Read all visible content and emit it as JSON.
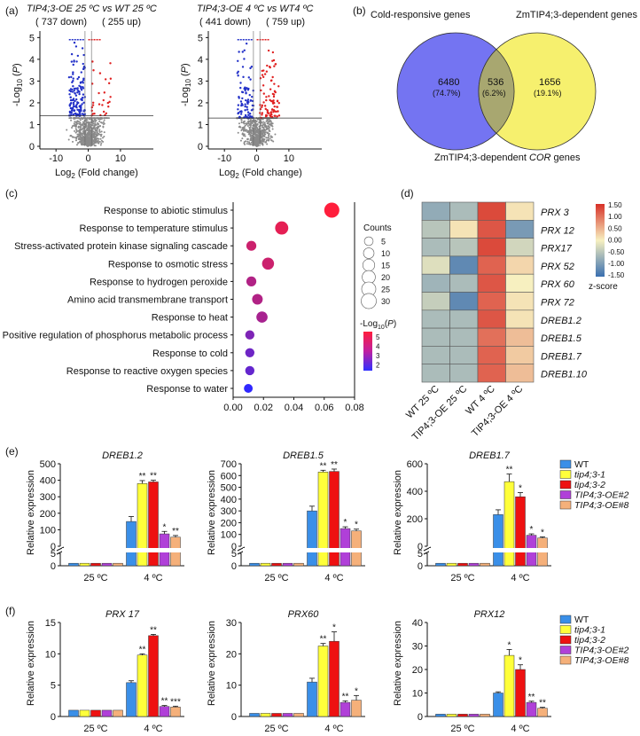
{
  "colors": {
    "blue": "#2230c8",
    "red": "#e02020",
    "grey": "#8a8a8a",
    "venn_left": "#7070f0",
    "venn_right": "#f5f06a",
    "venn_mid": "#a8a86a",
    "wt": "#3a8fe8",
    "tip1": "#ffff3a",
    "tip2": "#ee1111",
    "oe2": "#b040d8",
    "oe8": "#f5b07a"
  },
  "panel_labels": {
    "a": "(a)",
    "b": "(b)",
    "c": "(c)",
    "d": "(d)",
    "e": "(e)",
    "f": "(f)"
  },
  "volcano": [
    {
      "title": "TIP4;3-OE 25 ºC vs WT 25 ºC",
      "down": "( 737 down)",
      "up": "( 255 up)",
      "xlabel": "Log2 (Fold change)",
      "ylabel": "-Log10 (P)",
      "yticks": [
        "0",
        "1",
        "2",
        "3",
        "4",
        "5"
      ],
      "xticks": [
        "-10",
        "0",
        "10"
      ],
      "threshold": 1.4
    },
    {
      "title": "TIP4;3-OE 4 ºC vs WT4 ºC",
      "down": "( 441 down)",
      "up": "( 759 up)",
      "xlabel": "Log2 (Fold change)",
      "ylabel": "-Log10 (P)",
      "yticks": [
        "0",
        "1",
        "2",
        "3",
        "4",
        "5"
      ],
      "xticks": [
        "-10",
        "0",
        "10"
      ],
      "threshold": 1.3
    }
  ],
  "venn": {
    "left_label": "Cold-responsive genes",
    "right_label": "ZmTIP4;3-dependent genes",
    "bottom_label": "ZmTIP4;3-dependent COR genes",
    "left_n": "6480",
    "left_pct": "(74.7%)",
    "mid_n": "536",
    "mid_pct": "(6.2%)",
    "right_n": "1656",
    "right_pct": "(19.1%)"
  },
  "chart_data": [
    {
      "type": "scatter",
      "panel": "c",
      "title": "GO enrichment",
      "categories": [
        "Response to abiotic stimulus",
        "Response to temperature stimulus",
        "Stress-activated protein kinase signaling cascade",
        "Response to osmotic stress",
        "Response to hydrogen peroxide",
        "Amino acid transmembrane transport",
        "Response to heat",
        "Positive regulation of phosphorus metabolic process",
        "Response to cold",
        "Response to reactive oxygen species",
        "Response to water"
      ],
      "x": [
        0.065,
        0.032,
        0.012,
        0.023,
        0.012,
        0.016,
        0.019,
        0.011,
        0.011,
        0.011,
        0.01
      ],
      "counts": [
        30,
        20,
        8,
        15,
        8,
        10,
        12,
        6,
        6,
        6,
        5
      ],
      "neglogp": [
        5.5,
        5.0,
        4.5,
        4.5,
        4.0,
        4.0,
        3.8,
        3.0,
        2.7,
        2.5,
        1.5
      ],
      "xticks": [
        "0.00",
        "0.02",
        "0.04",
        "0.06",
        "0.08"
      ],
      "xlim": [
        0,
        0.08
      ],
      "legend": {
        "counts_title": "Counts",
        "counts": [
          "5",
          "10",
          "15",
          "20",
          "25",
          "30"
        ],
        "color_title": "-Log10(P)",
        "color_ticks": [
          "5",
          "4",
          "3",
          "2"
        ]
      }
    },
    {
      "type": "heatmap",
      "panel": "d",
      "rows": [
        "PRX 3",
        "PRX 12",
        "PRX17",
        "PRX 52",
        "PRX 60",
        "PRX 72",
        "DREB1.2",
        "DREB1.5",
        "DREB1.7",
        "DREB1.10"
      ],
      "columns": [
        "WT 25 ºC",
        "TIP4;3-OE 25 ºC",
        "WT 4 ºC",
        "TIP4;3-OE 4 ºC"
      ],
      "values": [
        [
          -0.8,
          -0.6,
          1.3,
          0.1
        ],
        [
          -0.5,
          0.1,
          1.2,
          -1.0
        ],
        [
          -0.6,
          -0.5,
          1.3,
          -0.3
        ],
        [
          -0.2,
          -1.2,
          1.1,
          0.2
        ],
        [
          -0.7,
          -0.6,
          1.2,
          0.0
        ],
        [
          -0.4,
          -1.2,
          1.1,
          0.1
        ],
        [
          -0.6,
          -0.6,
          1.2,
          0.1
        ],
        [
          -0.6,
          -0.6,
          1.0,
          0.4
        ],
        [
          -0.6,
          -0.6,
          1.1,
          0.3
        ],
        [
          -0.6,
          -0.6,
          1.1,
          0.4
        ]
      ],
      "scale": {
        "ticks": [
          "1.50",
          "1.00",
          "0.50",
          "0.00",
          "-0.50",
          "-1.00",
          "-1.50"
        ],
        "label": "z-score"
      }
    },
    {
      "type": "bar",
      "panel": "e",
      "title": "DREB1.2",
      "ylabel": "Relative expression",
      "categories": [
        "25 ºC",
        "4 ºC"
      ],
      "series": [
        {
          "name": "WT",
          "values": [
            1,
            150
          ],
          "err": [
            0.15,
            30
          ]
        },
        {
          "name": "tip4;3-1",
          "values": [
            1,
            380
          ],
          "err": [
            0.15,
            18
          ]
        },
        {
          "name": "tip4;3-2",
          "values": [
            1,
            390
          ],
          "err": [
            0.15,
            10
          ]
        },
        {
          "name": "TIP4;3-OE#2",
          "values": [
            1,
            75
          ],
          "err": [
            0.15,
            15
          ]
        },
        {
          "name": "TIP4;3-OE#8",
          "values": [
            1,
            55
          ],
          "err": [
            0.15,
            10
          ]
        }
      ],
      "stars": [
        "",
        "**",
        "**",
        "*",
        "**"
      ],
      "upper": {
        "lim": [
          0,
          500
        ],
        "ticks": [
          "0",
          "100",
          "200",
          "300",
          "400",
          "500"
        ]
      },
      "lower": {
        "lim": [
          0,
          5
        ],
        "ticks": [
          "0",
          "5"
        ]
      }
    },
    {
      "type": "bar",
      "panel": "e",
      "title": "DREB1.5",
      "ylabel": "Relative expression",
      "categories": [
        "25 ºC",
        "4 ºC"
      ],
      "series": [
        {
          "name": "WT",
          "values": [
            1,
            300
          ],
          "err": [
            0.15,
            40
          ]
        },
        {
          "name": "tip4;3-1",
          "values": [
            1,
            630
          ],
          "err": [
            0.15,
            15
          ]
        },
        {
          "name": "tip4;3-2",
          "values": [
            1,
            635
          ],
          "err": [
            0.15,
            20
          ]
        },
        {
          "name": "TIP4;3-OE#2",
          "values": [
            1,
            150
          ],
          "err": [
            0.15,
            15
          ]
        },
        {
          "name": "TIP4;3-OE#8",
          "values": [
            1,
            130
          ],
          "err": [
            0.15,
            15
          ]
        }
      ],
      "stars": [
        "",
        "**",
        "**",
        "*",
        "*"
      ],
      "upper": {
        "lim": [
          0,
          700
        ],
        "ticks": [
          "0",
          "100",
          "200",
          "300",
          "400",
          "500",
          "600",
          "700"
        ]
      },
      "lower": {
        "lim": [
          0,
          5
        ],
        "ticks": [
          "0",
          "5"
        ]
      }
    },
    {
      "type": "bar",
      "panel": "e",
      "title": "DREB1.7",
      "ylabel": "Relative expression",
      "categories": [
        "25 ºC",
        "4 ºC"
      ],
      "series": [
        {
          "name": "WT",
          "values": [
            1,
            230
          ],
          "err": [
            0.15,
            35
          ]
        },
        {
          "name": "tip4;3-1",
          "values": [
            1,
            470
          ],
          "err": [
            0.15,
            55
          ]
        },
        {
          "name": "tip4;3-2",
          "values": [
            1,
            360
          ],
          "err": [
            0.15,
            30
          ]
        },
        {
          "name": "TIP4;3-OE#2",
          "values": [
            1,
            80
          ],
          "err": [
            0.15,
            10
          ]
        },
        {
          "name": "TIP4;3-OE#8",
          "values": [
            1,
            60
          ],
          "err": [
            0.15,
            8
          ]
        }
      ],
      "stars": [
        "",
        "**",
        "*",
        "*",
        "*"
      ],
      "upper": {
        "lim": [
          0,
          600
        ],
        "ticks": [
          "0",
          "200",
          "400",
          "600"
        ]
      },
      "lower": {
        "lim": [
          0,
          5
        ],
        "ticks": [
          "0",
          "5"
        ]
      }
    },
    {
      "type": "bar",
      "panel": "f",
      "title": "PRX 17",
      "ylabel": "Relative expression",
      "categories": [
        "25 ºC",
        "4 ºC"
      ],
      "ylim": [
        0,
        15
      ],
      "yticks": [
        "0",
        "5",
        "10",
        "15"
      ],
      "series": [
        {
          "name": "WT",
          "values": [
            1,
            5.4
          ],
          "err": [
            0.05,
            0.3
          ]
        },
        {
          "name": "tip4;3-1",
          "values": [
            1,
            9.8
          ],
          "err": [
            0.05,
            0.2
          ]
        },
        {
          "name": "tip4;3-2",
          "values": [
            1,
            12.9
          ],
          "err": [
            0.05,
            0.2
          ]
        },
        {
          "name": "TIP4;3-OE#2",
          "values": [
            1,
            1.6
          ],
          "err": [
            0.05,
            0.15
          ]
        },
        {
          "name": "TIP4;3-OE#8",
          "values": [
            1,
            1.5
          ],
          "err": [
            0.05,
            0.15
          ]
        }
      ],
      "stars": [
        "",
        "**",
        "**",
        "**",
        "***"
      ]
    },
    {
      "type": "bar",
      "panel": "f",
      "title": "PRX60",
      "ylabel": "Relative expression",
      "categories": [
        "25 ºC",
        "4 ºC"
      ],
      "ylim": [
        0,
        30
      ],
      "yticks": [
        "0",
        "10",
        "20",
        "30"
      ],
      "series": [
        {
          "name": "WT",
          "values": [
            1,
            11
          ],
          "err": [
            0.1,
            1.2
          ]
        },
        {
          "name": "tip4;3-1",
          "values": [
            1,
            22.5
          ],
          "err": [
            0.1,
            0.8
          ]
        },
        {
          "name": "tip4;3-2",
          "values": [
            1,
            24
          ],
          "err": [
            0.1,
            3
          ]
        },
        {
          "name": "TIP4;3-OE#2",
          "values": [
            1,
            4.5
          ],
          "err": [
            0.1,
            0.5
          ]
        },
        {
          "name": "TIP4;3-OE#8",
          "values": [
            1,
            5.2
          ],
          "err": [
            0.1,
            1.5
          ]
        }
      ],
      "stars": [
        "",
        "**",
        "*",
        "**",
        "*"
      ]
    },
    {
      "type": "bar",
      "panel": "f",
      "title": "PRX12",
      "ylabel": "Relative expression",
      "categories": [
        "25 ºC",
        "4 ºC"
      ],
      "ylim": [
        0,
        40
      ],
      "yticks": [
        "0",
        "10",
        "20",
        "30",
        "40"
      ],
      "series": [
        {
          "name": "WT",
          "values": [
            1,
            10
          ],
          "err": [
            0.1,
            0.5
          ]
        },
        {
          "name": "tip4;3-1",
          "values": [
            1,
            26
          ],
          "err": [
            0.1,
            2.5
          ]
        },
        {
          "name": "tip4;3-2",
          "values": [
            1,
            20
          ],
          "err": [
            0.1,
            2
          ]
        },
        {
          "name": "TIP4;3-OE#2",
          "values": [
            1,
            6
          ],
          "err": [
            0.1,
            0.5
          ]
        },
        {
          "name": "TIP4;3-OE#8",
          "values": [
            1,
            3.5
          ],
          "err": [
            0.1,
            0.4
          ]
        }
      ],
      "stars": [
        "",
        "*",
        "*",
        "**",
        "**"
      ]
    }
  ],
  "bar_legend": [
    "WT",
    "tip4;3-1",
    "tip4;3-2",
    "TIP4;3-OE#2",
    "TIP4;3-OE#8"
  ]
}
